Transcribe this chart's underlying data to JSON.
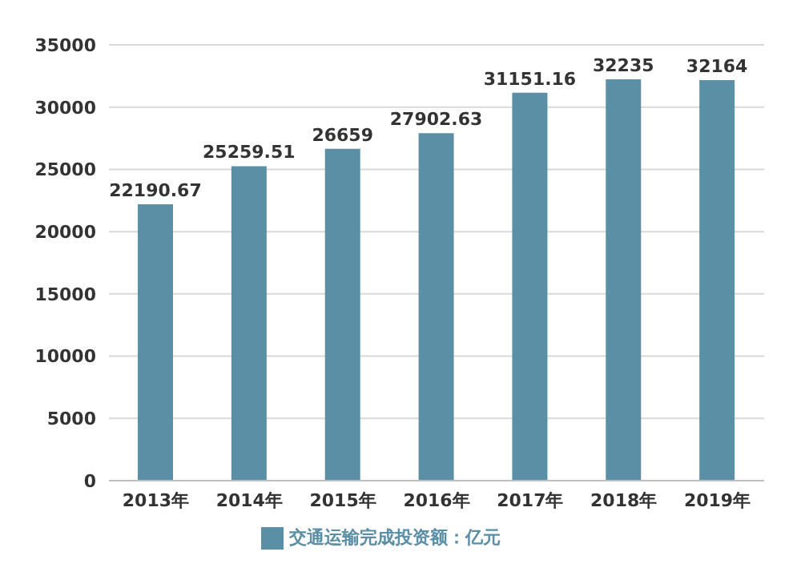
{
  "chart_data": {
    "type": "bar",
    "categories": [
      "2013年",
      "2014年",
      "2015年",
      "2016年",
      "2017年",
      "2018年",
      "2019年"
    ],
    "series": [
      {
        "name": "交通运输完成投资额：亿元",
        "color": "#5a8fa6",
        "values": [
          22190.67,
          25259.51,
          26659,
          27902.63,
          31151.16,
          32235,
          32164
        ]
      }
    ],
    "ylim": [
      0,
      35000
    ],
    "yticks": [
      0,
      5000,
      10000,
      15000,
      20000,
      25000,
      30000,
      35000
    ],
    "grid": "y",
    "legend": "bottom",
    "data_labels": true
  }
}
